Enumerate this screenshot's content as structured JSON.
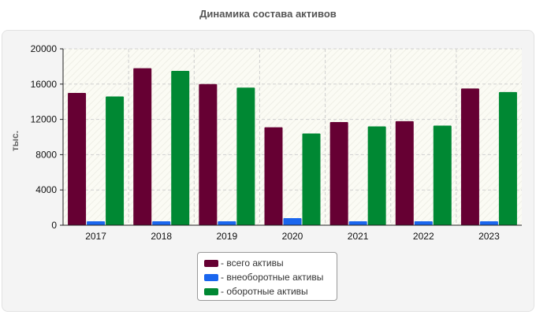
{
  "chart_data": {
    "type": "bar",
    "title": "Динамика состава активов",
    "ylabel": "тыс.",
    "ylim": [
      0,
      20000
    ],
    "yticks": [
      0,
      4000,
      8000,
      12000,
      16000,
      20000
    ],
    "categories": [
      "2017",
      "2018",
      "2019",
      "2020",
      "2021",
      "2022",
      "2023"
    ],
    "series": [
      {
        "name": "- всего активы",
        "color": "#660033",
        "values": [
          15000,
          17800,
          16000,
          11100,
          11700,
          11800,
          15500
        ]
      },
      {
        "name": "- внеоборотные активы",
        "color": "#1a66ee",
        "values": [
          450,
          450,
          450,
          800,
          450,
          450,
          450
        ]
      },
      {
        "name": "- оборотные активы",
        "color": "#008833",
        "values": [
          14600,
          17500,
          15600,
          10400,
          11200,
          11300,
          15100
        ]
      }
    ],
    "grid": true,
    "legend_position": "bottom-center"
  }
}
